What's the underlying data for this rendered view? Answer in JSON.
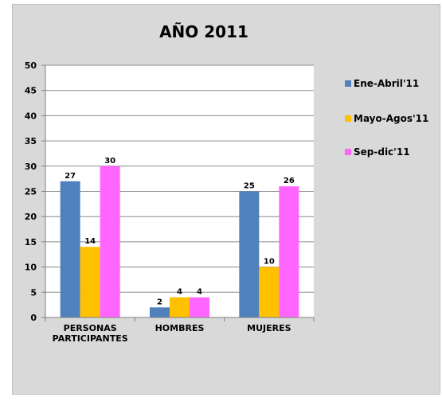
{
  "chart_data": {
    "type": "bar",
    "title": "AÑO 2011",
    "categories": [
      "PERSONAS PARTICIPANTES",
      "HOMBRES",
      "MUJERES"
    ],
    "category_lines": [
      [
        "PERSONAS",
        "PARTICIPANTES"
      ],
      [
        "HOMBRES"
      ],
      [
        "MUJERES"
      ]
    ],
    "series": [
      {
        "name": "Ene-Abril'11",
        "values": [
          27,
          2,
          25
        ],
        "color": "#4f81bd"
      },
      {
        "name": "Mayo-Agos'11",
        "values": [
          14,
          4,
          10
        ],
        "color": "#ffc000"
      },
      {
        "name": "Sep-dic'11",
        "values": [
          30,
          4,
          26
        ],
        "color": "#ff66ff"
      }
    ],
    "ylim": [
      0,
      50
    ],
    "yticks": [
      "0",
      "5",
      "10",
      "15",
      "20",
      "25",
      "30",
      "35",
      "40",
      "45",
      "50"
    ],
    "xlabel": "",
    "ylabel": "",
    "grid": true,
    "legend": "right",
    "data_labels": true
  }
}
